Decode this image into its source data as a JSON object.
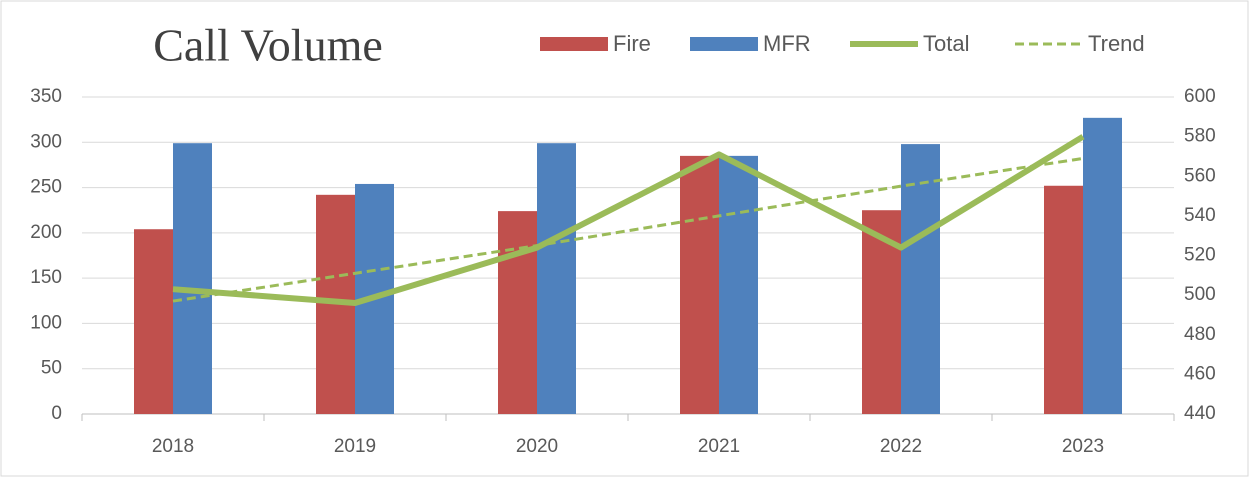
{
  "chart_data": {
    "type": "bar_line",
    "title": "Call Volume",
    "categories": [
      "2018",
      "2019",
      "2020",
      "2021",
      "2022",
      "2023"
    ],
    "series": [
      {
        "name": "Fire",
        "type": "bar",
        "color": "#c0504d",
        "values": [
          204,
          242,
          224,
          285,
          225,
          252
        ]
      },
      {
        "name": "MFR",
        "type": "bar",
        "color": "#4f81bd",
        "values": [
          299,
          254,
          299,
          285,
          298,
          327
        ]
      },
      {
        "name": "Total",
        "type": "line",
        "axis": "y2",
        "color": "#9bbb59",
        "values": [
          503,
          496,
          524,
          571,
          524,
          580
        ]
      },
      {
        "name": "Trend",
        "type": "dashed",
        "axis": "y2",
        "color": "#9bbb59",
        "values": [
          497,
          511,
          525,
          540,
          555,
          569
        ]
      }
    ],
    "ylim": [
      0,
      350
    ],
    "yticks": [
      0,
      50,
      100,
      150,
      200,
      250,
      300,
      350
    ],
    "y2lim": [
      440,
      600
    ],
    "y2ticks": [
      440,
      460,
      480,
      500,
      520,
      540,
      560,
      580,
      600
    ],
    "grid": true,
    "legend": "top-right"
  }
}
